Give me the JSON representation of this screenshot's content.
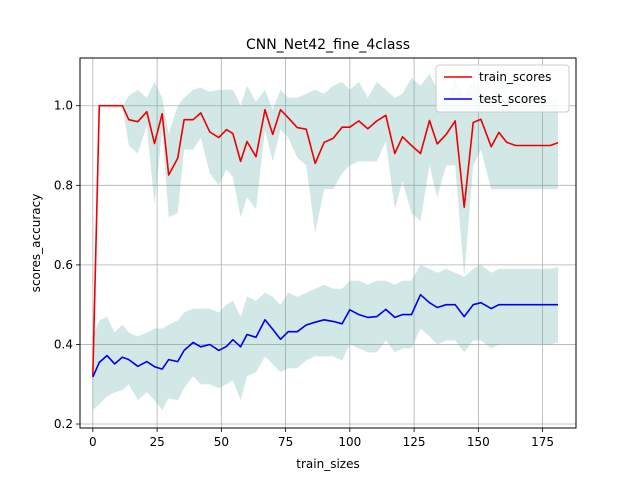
{
  "chart_data": {
    "type": "line",
    "title": "CNN_Net42_fine_4class",
    "xlabel": "train_sizes",
    "ylabel": "scores_accuracy",
    "xlim": [
      -5,
      188
    ],
    "ylim": [
      0.19,
      1.12
    ],
    "xticks": [
      0,
      25,
      50,
      75,
      100,
      125,
      150,
      175
    ],
    "yticks": [
      0.2,
      0.4,
      0.6,
      0.8,
      1.0
    ],
    "grid": true,
    "legend_position": "top-right",
    "x": [
      0,
      2.5,
      5.5,
      8.5,
      11.5,
      14,
      17.5,
      21,
      24,
      27,
      29.5,
      33,
      35.5,
      39,
      42,
      45.5,
      49,
      52,
      54.5,
      57.5,
      60,
      63.5,
      67,
      70,
      73,
      76,
      79.5,
      83,
      86.5,
      90,
      93.5,
      97,
      100,
      103.5,
      107,
      110.5,
      114,
      117.5,
      120.5,
      124,
      127.5,
      131,
      134,
      137.5,
      141,
      144.5,
      148,
      151,
      155,
      158,
      161,
      164.5,
      168,
      171,
      174.5,
      178,
      181
    ],
    "series": [
      {
        "name": "train_scores",
        "color": "#ee0000",
        "values": [
          0.32,
          1.0,
          1.0,
          1.0,
          1.0,
          0.965,
          0.96,
          0.985,
          0.905,
          0.98,
          0.826,
          0.868,
          0.965,
          0.965,
          0.982,
          0.934,
          0.92,
          0.94,
          0.93,
          0.86,
          0.91,
          0.872,
          0.99,
          0.928,
          0.99,
          0.97,
          0.945,
          0.941,
          0.855,
          0.908,
          0.918,
          0.946,
          0.946,
          0.962,
          0.942,
          0.962,
          0.976,
          0.88,
          0.922,
          0.9,
          0.88,
          0.963,
          0.904,
          0.928,
          0.962,
          0.745,
          0.958,
          0.966,
          0.897,
          0.933,
          0.908,
          0.9,
          0.9,
          0.9,
          0.9,
          0.9,
          0.907
        ],
        "upper": [
          0.32,
          1.0,
          1.0,
          1.0,
          1.0,
          1.025,
          1.04,
          1.02,
          1.06,
          1.02,
          0.93,
          1.0,
          1.02,
          1.04,
          1.045,
          1.035,
          1.04,
          1.04,
          1.04,
          1.0,
          1.05,
          1.01,
          1.04,
          0.99,
          1.04,
          1.02,
          1.02,
          1.03,
          1.04,
          1.03,
          1.05,
          1.06,
          1.04,
          1.06,
          1.02,
          1.06,
          1.04,
          1.02,
          1.03,
          1.07,
          1.05,
          1.08,
          1.04,
          1.01,
          1.07,
          1.02,
          1.07,
          1.04,
          1.0,
          1.08,
          1.02,
          1.02,
          1.02,
          1.02,
          1.02,
          1.02,
          1.02
        ],
        "lower": [
          0.32,
          1.0,
          1.0,
          1.0,
          1.0,
          0.9,
          0.88,
          0.95,
          0.75,
          0.94,
          0.72,
          0.73,
          0.89,
          0.89,
          0.92,
          0.83,
          0.8,
          0.84,
          0.82,
          0.72,
          0.77,
          0.74,
          0.94,
          0.86,
          0.94,
          0.92,
          0.87,
          0.85,
          0.68,
          0.79,
          0.79,
          0.83,
          0.85,
          0.86,
          0.86,
          0.86,
          0.91,
          0.74,
          0.81,
          0.73,
          0.71,
          0.85,
          0.77,
          0.85,
          0.85,
          0.57,
          0.85,
          0.89,
          0.79,
          0.79,
          0.79,
          0.79,
          0.79,
          0.79,
          0.79,
          0.79,
          0.79
        ]
      },
      {
        "name": "test_scores",
        "color": "#0000ee",
        "values": [
          0.318,
          0.355,
          0.372,
          0.351,
          0.368,
          0.362,
          0.345,
          0.357,
          0.344,
          0.338,
          0.362,
          0.357,
          0.385,
          0.405,
          0.394,
          0.4,
          0.385,
          0.395,
          0.412,
          0.394,
          0.425,
          0.418,
          0.462,
          0.438,
          0.413,
          0.432,
          0.432,
          0.449,
          0.456,
          0.462,
          0.458,
          0.452,
          0.487,
          0.475,
          0.468,
          0.47,
          0.488,
          0.468,
          0.475,
          0.475,
          0.525,
          0.505,
          0.493,
          0.5,
          0.5,
          0.47,
          0.5,
          0.505,
          0.49,
          0.5,
          0.5,
          0.5,
          0.5,
          0.5,
          0.5,
          0.5,
          0.5
        ],
        "upper": [
          0.42,
          0.46,
          0.47,
          0.43,
          0.45,
          0.43,
          0.42,
          0.43,
          0.44,
          0.44,
          0.45,
          0.46,
          0.48,
          0.49,
          0.49,
          0.49,
          0.48,
          0.5,
          0.51,
          0.47,
          0.52,
          0.51,
          0.53,
          0.52,
          0.5,
          0.53,
          0.52,
          0.53,
          0.54,
          0.55,
          0.54,
          0.54,
          0.56,
          0.56,
          0.55,
          0.56,
          0.56,
          0.55,
          0.56,
          0.56,
          0.6,
          0.59,
          0.58,
          0.59,
          0.58,
          0.57,
          0.59,
          0.6,
          0.58,
          0.59,
          0.59,
          0.59,
          0.59,
          0.59,
          0.59,
          0.59,
          0.595
        ],
        "lower": [
          0.235,
          0.25,
          0.27,
          0.28,
          0.285,
          0.3,
          0.26,
          0.28,
          0.26,
          0.235,
          0.265,
          0.26,
          0.29,
          0.32,
          0.3,
          0.3,
          0.29,
          0.3,
          0.31,
          0.26,
          0.32,
          0.33,
          0.37,
          0.35,
          0.33,
          0.34,
          0.34,
          0.36,
          0.37,
          0.37,
          0.37,
          0.36,
          0.4,
          0.39,
          0.38,
          0.38,
          0.41,
          0.38,
          0.39,
          0.39,
          0.44,
          0.42,
          0.4,
          0.41,
          0.41,
          0.38,
          0.41,
          0.41,
          0.39,
          0.4,
          0.4,
          0.4,
          0.4,
          0.4,
          0.4,
          0.4,
          0.405
        ]
      }
    ],
    "band_color": "#5aaea6"
  }
}
